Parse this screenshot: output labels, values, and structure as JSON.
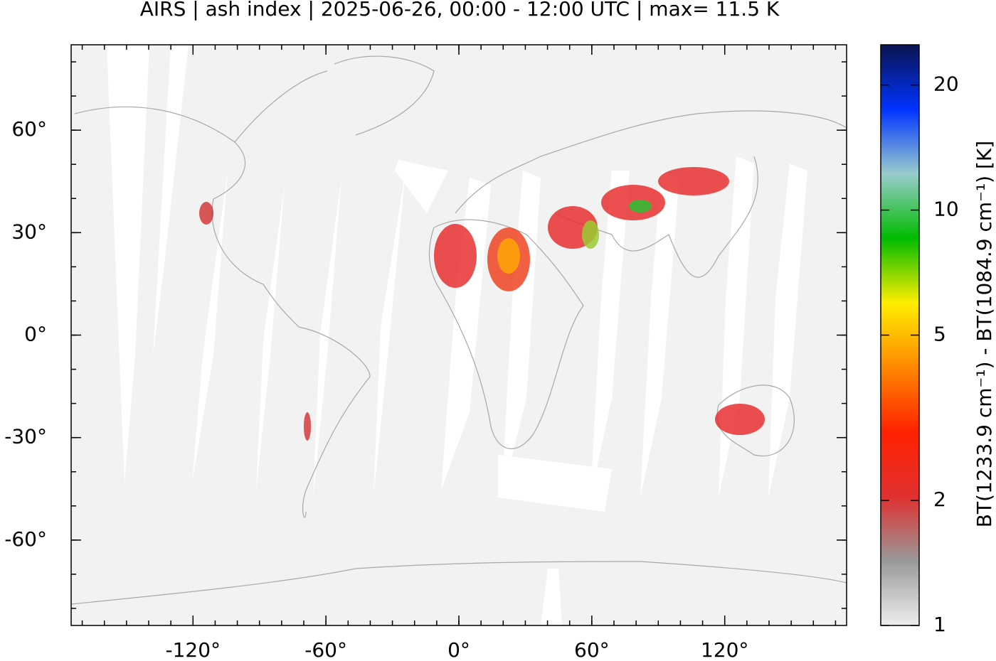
{
  "chart_data": {
    "type": "map",
    "title": "AIRS | ash index | 2025-06-26, 00:00 - 12:00 UTC | max= 11.5 K",
    "xlim": [
      -175,
      175
    ],
    "ylim": [
      -85,
      85
    ],
    "xticks": [
      {
        "value": -120,
        "label": "-120°"
      },
      {
        "value": -60,
        "label": "-60°"
      },
      {
        "value": 0,
        "label": "0°"
      },
      {
        "value": 60,
        "label": "60°"
      },
      {
        "value": 120,
        "label": "120°"
      }
    ],
    "yticks": [
      {
        "value": 60,
        "label": "60°"
      },
      {
        "value": 30,
        "label": "30°"
      },
      {
        "value": 0,
        "label": "0°"
      },
      {
        "value": -30,
        "label": "-30°"
      },
      {
        "value": -60,
        "label": "-60°"
      }
    ],
    "colorbar": {
      "label": "BT(1233.9 cm⁻¹) - BT(1084.9 cm⁻¹) [K]",
      "lim": [
        1,
        25
      ],
      "log": true,
      "ticks": [
        1,
        2,
        5,
        10,
        20
      ],
      "colors": [
        "#eeeeee",
        "#999999",
        "#e03030",
        "#ff2200",
        "#ff8800",
        "#ffee00",
        "#00bb00",
        "#99cccc",
        "#0033ff",
        "#0a1450"
      ]
    }
  }
}
